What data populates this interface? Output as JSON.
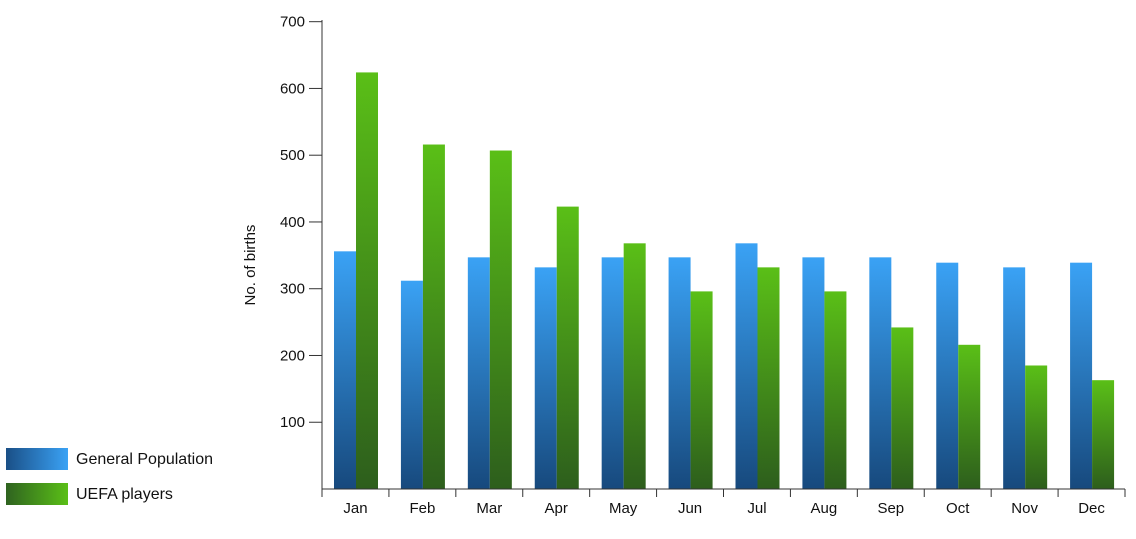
{
  "chart_data": {
    "type": "bar",
    "title": "",
    "xlabel": "",
    "ylabel": "No. of births",
    "ylim": [
      0,
      700
    ],
    "yticks": [
      100,
      200,
      300,
      400,
      500,
      600,
      700
    ],
    "grid": false,
    "legend_position": "bottom-left",
    "categories": [
      "Jan",
      "Feb",
      "Mar",
      "Apr",
      "May",
      "Jun",
      "Jul",
      "Aug",
      "Sep",
      "Oct",
      "Nov",
      "Dec"
    ],
    "series": [
      {
        "name": "General Population",
        "values": [
          356,
          312,
          347,
          332,
          347,
          347,
          368,
          347,
          347,
          339,
          332,
          339
        ],
        "color_top": "#3aa2f5",
        "color_bottom": "#17497d",
        "legend_color_left": "#1a4f86",
        "legend_color_right": "#3aa2f5"
      },
      {
        "name": "UEFA players",
        "values": [
          624,
          516,
          507,
          423,
          368,
          296,
          332,
          296,
          242,
          216,
          185,
          163
        ],
        "color_top": "#5abf17",
        "color_bottom": "#2d5e1c",
        "legend_color_left": "#2f6320",
        "legend_color_right": "#5abf17"
      }
    ]
  }
}
